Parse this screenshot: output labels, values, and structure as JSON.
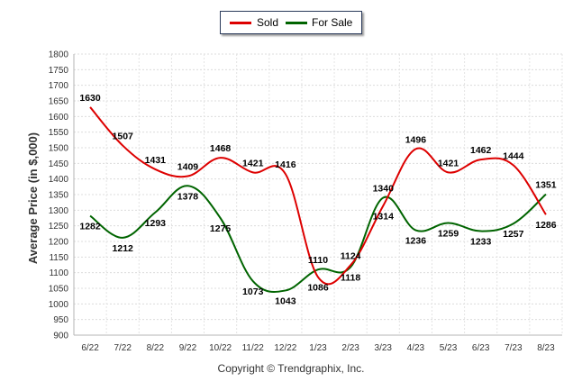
{
  "chart_data": {
    "type": "line",
    "ylabel": "Average Price (in $,000)",
    "ylim": [
      900,
      1800
    ],
    "yticks": [
      900,
      950,
      1000,
      1050,
      1100,
      1150,
      1200,
      1250,
      1300,
      1350,
      1400,
      1450,
      1500,
      1550,
      1600,
      1650,
      1700,
      1750,
      1800
    ],
    "categories": [
      "6/22",
      "7/22",
      "8/22",
      "9/22",
      "10/22",
      "11/22",
      "12/22",
      "1/23",
      "2/23",
      "3/23",
      "4/23",
      "5/23",
      "6/23",
      "7/23",
      "8/23"
    ],
    "series": [
      {
        "name": "Sold",
        "color": "#dd0000",
        "values": [
          1630,
          1507,
          1431,
          1409,
          1468,
          1421,
          1416,
          1086,
          1124,
          1314,
          1496,
          1421,
          1462,
          1444,
          1286
        ]
      },
      {
        "name": "For Sale",
        "color": "#006400",
        "values": [
          1282,
          1212,
          1293,
          1378,
          1275,
          1073,
          1043,
          1110,
          1118,
          1340,
          1236,
          1259,
          1233,
          1257,
          1351
        ]
      }
    ],
    "grid": true,
    "legend": "top-center"
  },
  "legend": {
    "sold_label": "Sold",
    "for_sale_label": "For Sale"
  },
  "footer": {
    "copyright": "Copyright © Trendgraphix, Inc."
  }
}
